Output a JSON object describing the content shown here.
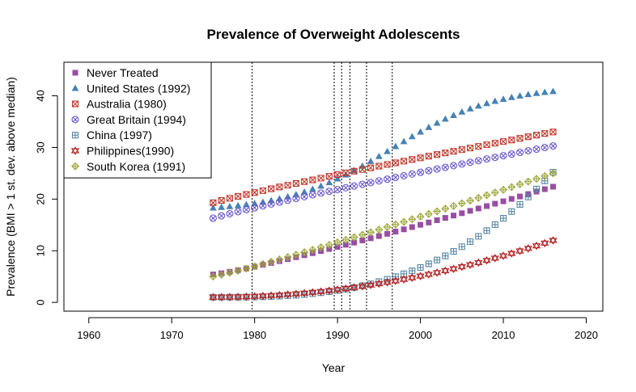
{
  "chart_data": {
    "type": "scatter",
    "title": "Prevalence of Overweight Adolescents",
    "xlabel": "Year",
    "ylabel": "Prevalence (BMI > 1 st. dev. above median)",
    "xlim": [
      1957,
      2022
    ],
    "ylim": [
      -1.7,
      46.5
    ],
    "x_ticks": [
      1960,
      1970,
      1980,
      1990,
      2000,
      2010,
      2020
    ],
    "y_ticks": [
      0,
      10,
      20,
      30,
      40
    ],
    "legend_position": "top-left",
    "grid": false,
    "x_start": 1975,
    "x_end": 2016,
    "vlines": [
      1979.7,
      1989.6,
      1990.5,
      1991.5,
      1993.5,
      1996.6
    ],
    "series": [
      {
        "name": "Never Treated",
        "marker": "square",
        "color": "#984ea3",
        "start": 5.4,
        "end": 22.4,
        "curve": 1.15
      },
      {
        "name": "United States (1992)",
        "marker": "triangle",
        "color": "#4682b4",
        "start": 18.6,
        "end": 41.2,
        "curve": "logistic"
      },
      {
        "name": "Australia (1980)",
        "marker": "square-x",
        "color": "#c0392b",
        "start": 19.3,
        "end": 33.0,
        "curve": 0.92
      },
      {
        "name": "Great Britain (1994)",
        "marker": "circle-x",
        "color": "#6a5acd",
        "start": 16.3,
        "end": 30.3,
        "curve": 0.92
      },
      {
        "name": "China (1997)",
        "marker": "square-plus",
        "color": "#5b88a5",
        "start": 1.0,
        "end": 25.2,
        "curve": 2.9
      },
      {
        "name": "Philippines(1990)",
        "marker": "star",
        "color": "#b22222",
        "start": 1.0,
        "end": 12.0,
        "curve": 2.0
      },
      {
        "name": "South Korea (1991)",
        "marker": "diamond-plus",
        "color": "#9ea83a",
        "start": 5.0,
        "end": 25.0,
        "curve": 1.1
      }
    ]
  }
}
